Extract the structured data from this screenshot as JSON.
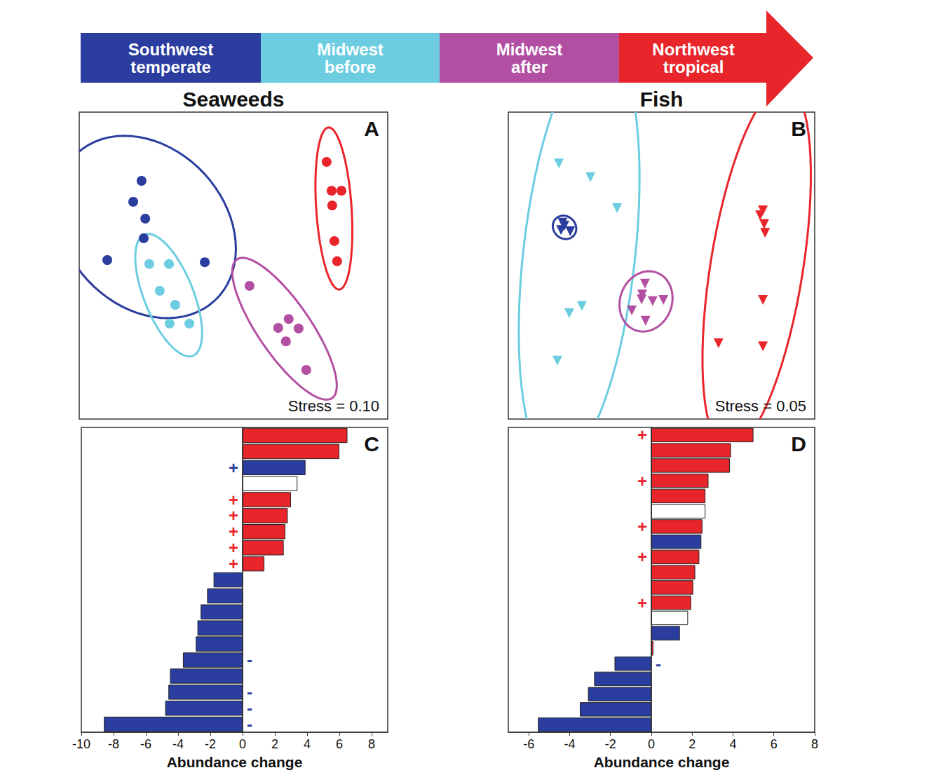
{
  "groups": [
    {
      "name": "Southwest temperate",
      "color": "#2b3d9e"
    },
    {
      "name": "Midwest before",
      "color": "#6ccde0"
    },
    {
      "name": "Midwest after",
      "color": "#b34fa3"
    },
    {
      "name": "Northwest tropical",
      "color": "#e8252a"
    }
  ],
  "chart_data": [
    {
      "type": "scatter",
      "title": "Seaweeds",
      "annotations": [
        "A",
        "Stress = 0.10"
      ],
      "marker": "circle",
      "tick_labels": false,
      "xlim": [
        0,
        100
      ],
      "ylim": [
        0,
        100
      ],
      "series": [
        {
          "name": "Southwest temperate",
          "color": "#2b3d9e",
          "x": [
            20.2,
            17.5,
            21.4,
            20.9,
            9.1,
            40.7
          ],
          "y": [
            77.6,
            70.8,
            65.3,
            58.9,
            51.8,
            51.1
          ]
        },
        {
          "name": "Midwest before",
          "color": "#6ccde0",
          "x": [
            22.7,
            29.1,
            26.1,
            31.1,
            29.3,
            35.7
          ],
          "y": [
            50.5,
            50.5,
            41.8,
            37.2,
            31.1,
            31.1
          ]
        },
        {
          "name": "Midwest after",
          "color": "#b34fa3",
          "x": [
            55.2,
            64.5,
            67.9,
            71.1,
            67.0,
            73.6
          ],
          "y": [
            43.4,
            29.7,
            32.6,
            29.5,
            25.3,
            16.0
          ]
        },
        {
          "name": "Northwest tropical",
          "color": "#e8252a",
          "x": [
            80.2,
            81.8,
            85.0,
            82.0,
            82.7,
            83.6
          ],
          "y": [
            83.8,
            74.4,
            74.4,
            69.6,
            58.0,
            51.4
          ]
        }
      ]
    },
    {
      "type": "scatter",
      "title": "Fish",
      "annotations": [
        "B",
        "Stress = 0.05"
      ],
      "marker": "triangle-down",
      "tick_labels": false,
      "xlim": [
        0,
        100
      ],
      "ylim": [
        0,
        100
      ],
      "series": [
        {
          "name": "Southwest temperate",
          "color": "#2b3d9e",
          "x": [
            18.3,
            17.2,
            20.2,
            17.7
          ],
          "y": [
            63.0,
            61.6,
            61.2,
            64.0
          ]
        },
        {
          "name": "Midwest before",
          "color": "#6ccde0",
          "x": [
            16.5,
            26.8,
            35.5,
            24.0,
            19.9,
            16.0
          ],
          "y": [
            83.3,
            78.8,
            68.7,
            36.8,
            34.5,
            19.0
          ]
        },
        {
          "name": "Midwest after",
          "color": "#b34fa3",
          "x": [
            44.6,
            43.7,
            43.5,
            50.6,
            40.3,
            44.8,
            47.1
          ],
          "y": [
            44.1,
            40.6,
            39.0,
            38.8,
            35.4,
            32.0,
            38.4
          ]
        },
        {
          "name": "Northwest tropical",
          "color": "#e8252a",
          "x": [
            82.2,
            83.5,
            83.8,
            83.1,
            83.1,
            68.6,
            83.1
          ],
          "y": [
            66.4,
            63.5,
            60.7,
            68.0,
            38.8,
            24.7,
            23.7
          ]
        }
      ]
    },
    {
      "type": "bar",
      "orientation": "horizontal",
      "annotations": [
        "C"
      ],
      "xlabel": "Abundance change",
      "tick_labels": "x",
      "xlim": [
        -10,
        9
      ],
      "xticks": [
        -10,
        -8,
        -6,
        -4,
        -2,
        0,
        2,
        4,
        6,
        8
      ],
      "values": [
        6.5,
        6.0,
        3.9,
        3.4,
        3.0,
        2.8,
        2.65,
        2.55,
        1.35,
        -1.8,
        -2.2,
        -2.6,
        -2.8,
        -2.9,
        -3.7,
        -4.5,
        -4.6,
        -4.8,
        -8.6
      ],
      "colors": [
        "#e8252a",
        "#e8252a",
        "#2b3d9e",
        "#ffffff",
        "#e8252a",
        "#e8252a",
        "#e8252a",
        "#e8252a",
        "#e8252a",
        "#2b3d9e",
        "#2b3d9e",
        "#2b3d9e",
        "#2b3d9e",
        "#2b3d9e",
        "#2b3d9e",
        "#2b3d9e",
        "#2b3d9e",
        "#2b3d9e",
        "#2b3d9e"
      ],
      "signs": [
        null,
        null,
        "+",
        null,
        "+",
        "+",
        "+",
        "+",
        "+",
        null,
        null,
        null,
        null,
        null,
        "-",
        null,
        "-",
        "-",
        "-"
      ]
    },
    {
      "type": "bar",
      "orientation": "horizontal",
      "annotations": [
        "D"
      ],
      "xlabel": "Abundance change",
      "tick_labels": "x",
      "xlim": [
        -7,
        8
      ],
      "xticks": [
        -6,
        -4,
        -2,
        0,
        2,
        4,
        6,
        8
      ],
      "values": [
        5.0,
        3.9,
        3.85,
        2.8,
        2.65,
        2.65,
        2.5,
        2.45,
        2.35,
        2.15,
        2.05,
        1.95,
        1.8,
        1.4,
        0.1,
        -1.8,
        -2.8,
        -3.1,
        -3.5,
        -5.55
      ],
      "colors": [
        "#e8252a",
        "#e8252a",
        "#e8252a",
        "#e8252a",
        "#e8252a",
        "#ffffff",
        "#e8252a",
        "#2b3d9e",
        "#e8252a",
        "#e8252a",
        "#e8252a",
        "#e8252a",
        "#ffffff",
        "#2b3d9e",
        "#e8252a",
        "#2b3d9e",
        "#2b3d9e",
        "#2b3d9e",
        "#2b3d9e",
        "#2b3d9e"
      ],
      "signs": [
        "+",
        null,
        null,
        "+",
        null,
        null,
        "+",
        null,
        "+",
        null,
        null,
        "+",
        null,
        null,
        null,
        "-",
        null,
        null,
        null,
        null
      ]
    }
  ]
}
